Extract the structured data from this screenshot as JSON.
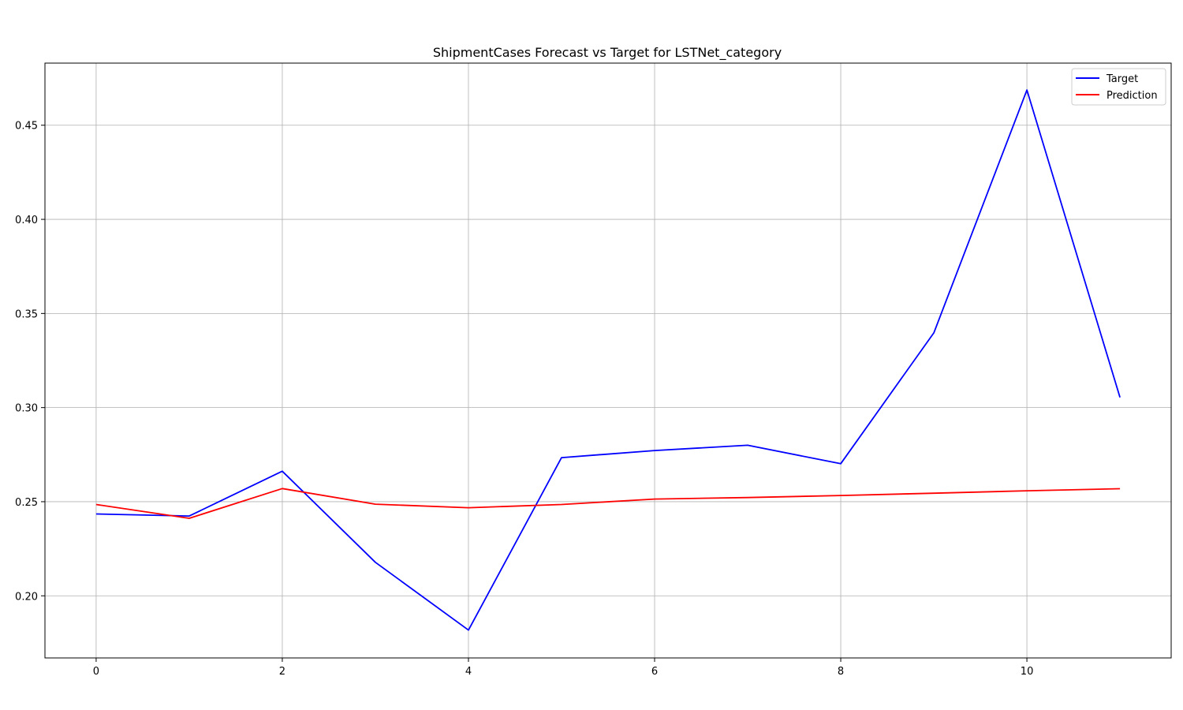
{
  "chart_data": {
    "type": "line",
    "title": "ShipmentCases Forecast vs Target for LSTNet_category",
    "xlabel": "",
    "ylabel": "",
    "x": [
      0,
      1,
      2,
      3,
      4,
      5,
      6,
      7,
      8,
      9,
      10,
      11
    ],
    "xlim": [
      -0.55,
      11.55
    ],
    "ylim": [
      0.167,
      0.483
    ],
    "xticks": [
      0,
      2,
      4,
      6,
      8,
      10
    ],
    "xtick_labels": [
      "0",
      "2",
      "4",
      "6",
      "8",
      "10"
    ],
    "yticks": [
      0.2,
      0.25,
      0.3,
      0.35,
      0.4,
      0.45
    ],
    "ytick_labels": [
      "0.20",
      "0.25",
      "0.30",
      "0.35",
      "0.40",
      "0.45"
    ],
    "grid": true,
    "legend_position": "top-right",
    "series": [
      {
        "name": "Target",
        "color": "#0000ff",
        "values": [
          0.2435,
          0.2424,
          0.2662,
          0.2178,
          0.1818,
          0.2734,
          0.2772,
          0.28,
          0.2702,
          0.3397,
          0.4687,
          0.3054
        ]
      },
      {
        "name": "Prediction",
        "color": "#ff0000",
        "values": [
          0.2485,
          0.2412,
          0.257,
          0.2487,
          0.2468,
          0.2485,
          0.2514,
          0.2522,
          0.2533,
          0.2545,
          0.2558,
          0.2569
        ]
      }
    ]
  }
}
